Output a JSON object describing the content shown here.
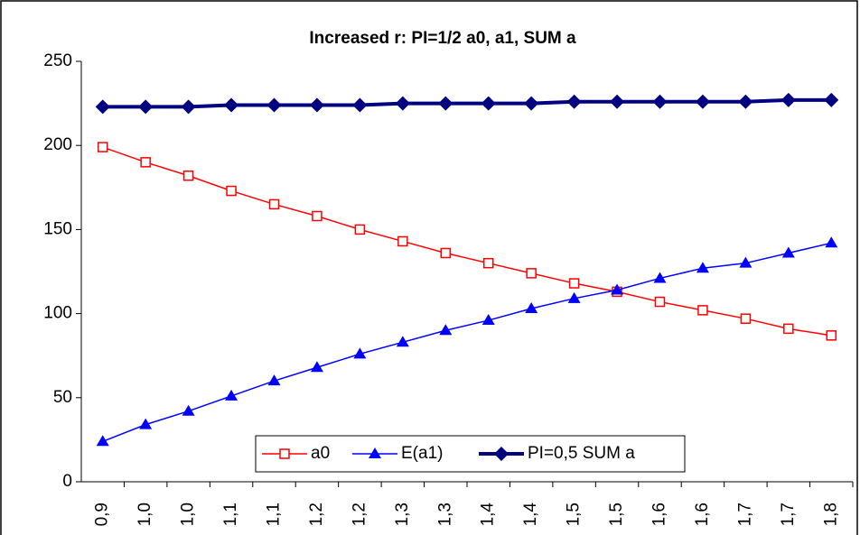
{
  "chart_data": {
    "type": "line",
    "title": "Increased r: PI=1/2 a0, a1, SUM a",
    "categories": [
      "0,9",
      "1,0",
      "1,0",
      "1,1",
      "1,1",
      "1,2",
      "1,2",
      "1,3",
      "1,3",
      "1,4",
      "1,4",
      "1,5",
      "1,5",
      "1,6",
      "1,6",
      "1,7",
      "1,7",
      "1,8"
    ],
    "series": [
      {
        "name": "a0",
        "color": "#ff0000",
        "marker": "square-open",
        "values": [
          199,
          190,
          182,
          173,
          165,
          158,
          150,
          143,
          136,
          130,
          124,
          118,
          113,
          107,
          102,
          97,
          91,
          87
        ]
      },
      {
        "name": "E(a1)",
        "color": "#0000ff",
        "marker": "triangle",
        "values": [
          24,
          34,
          42,
          51,
          60,
          68,
          76,
          83,
          90,
          96,
          103,
          109,
          114,
          121,
          127,
          130,
          136,
          142
        ]
      },
      {
        "name": "PI=0,5 SUM a",
        "color": "#000080",
        "marker": "diamond",
        "values": [
          223,
          223,
          223,
          224,
          224,
          224,
          224,
          225,
          225,
          225,
          225,
          226,
          226,
          226,
          226,
          226,
          227,
          227
        ]
      }
    ],
    "ylim": [
      0,
      250
    ],
    "yticks": [
      0,
      50,
      100,
      150,
      200,
      250
    ],
    "grid": false,
    "legend": "bottom"
  }
}
